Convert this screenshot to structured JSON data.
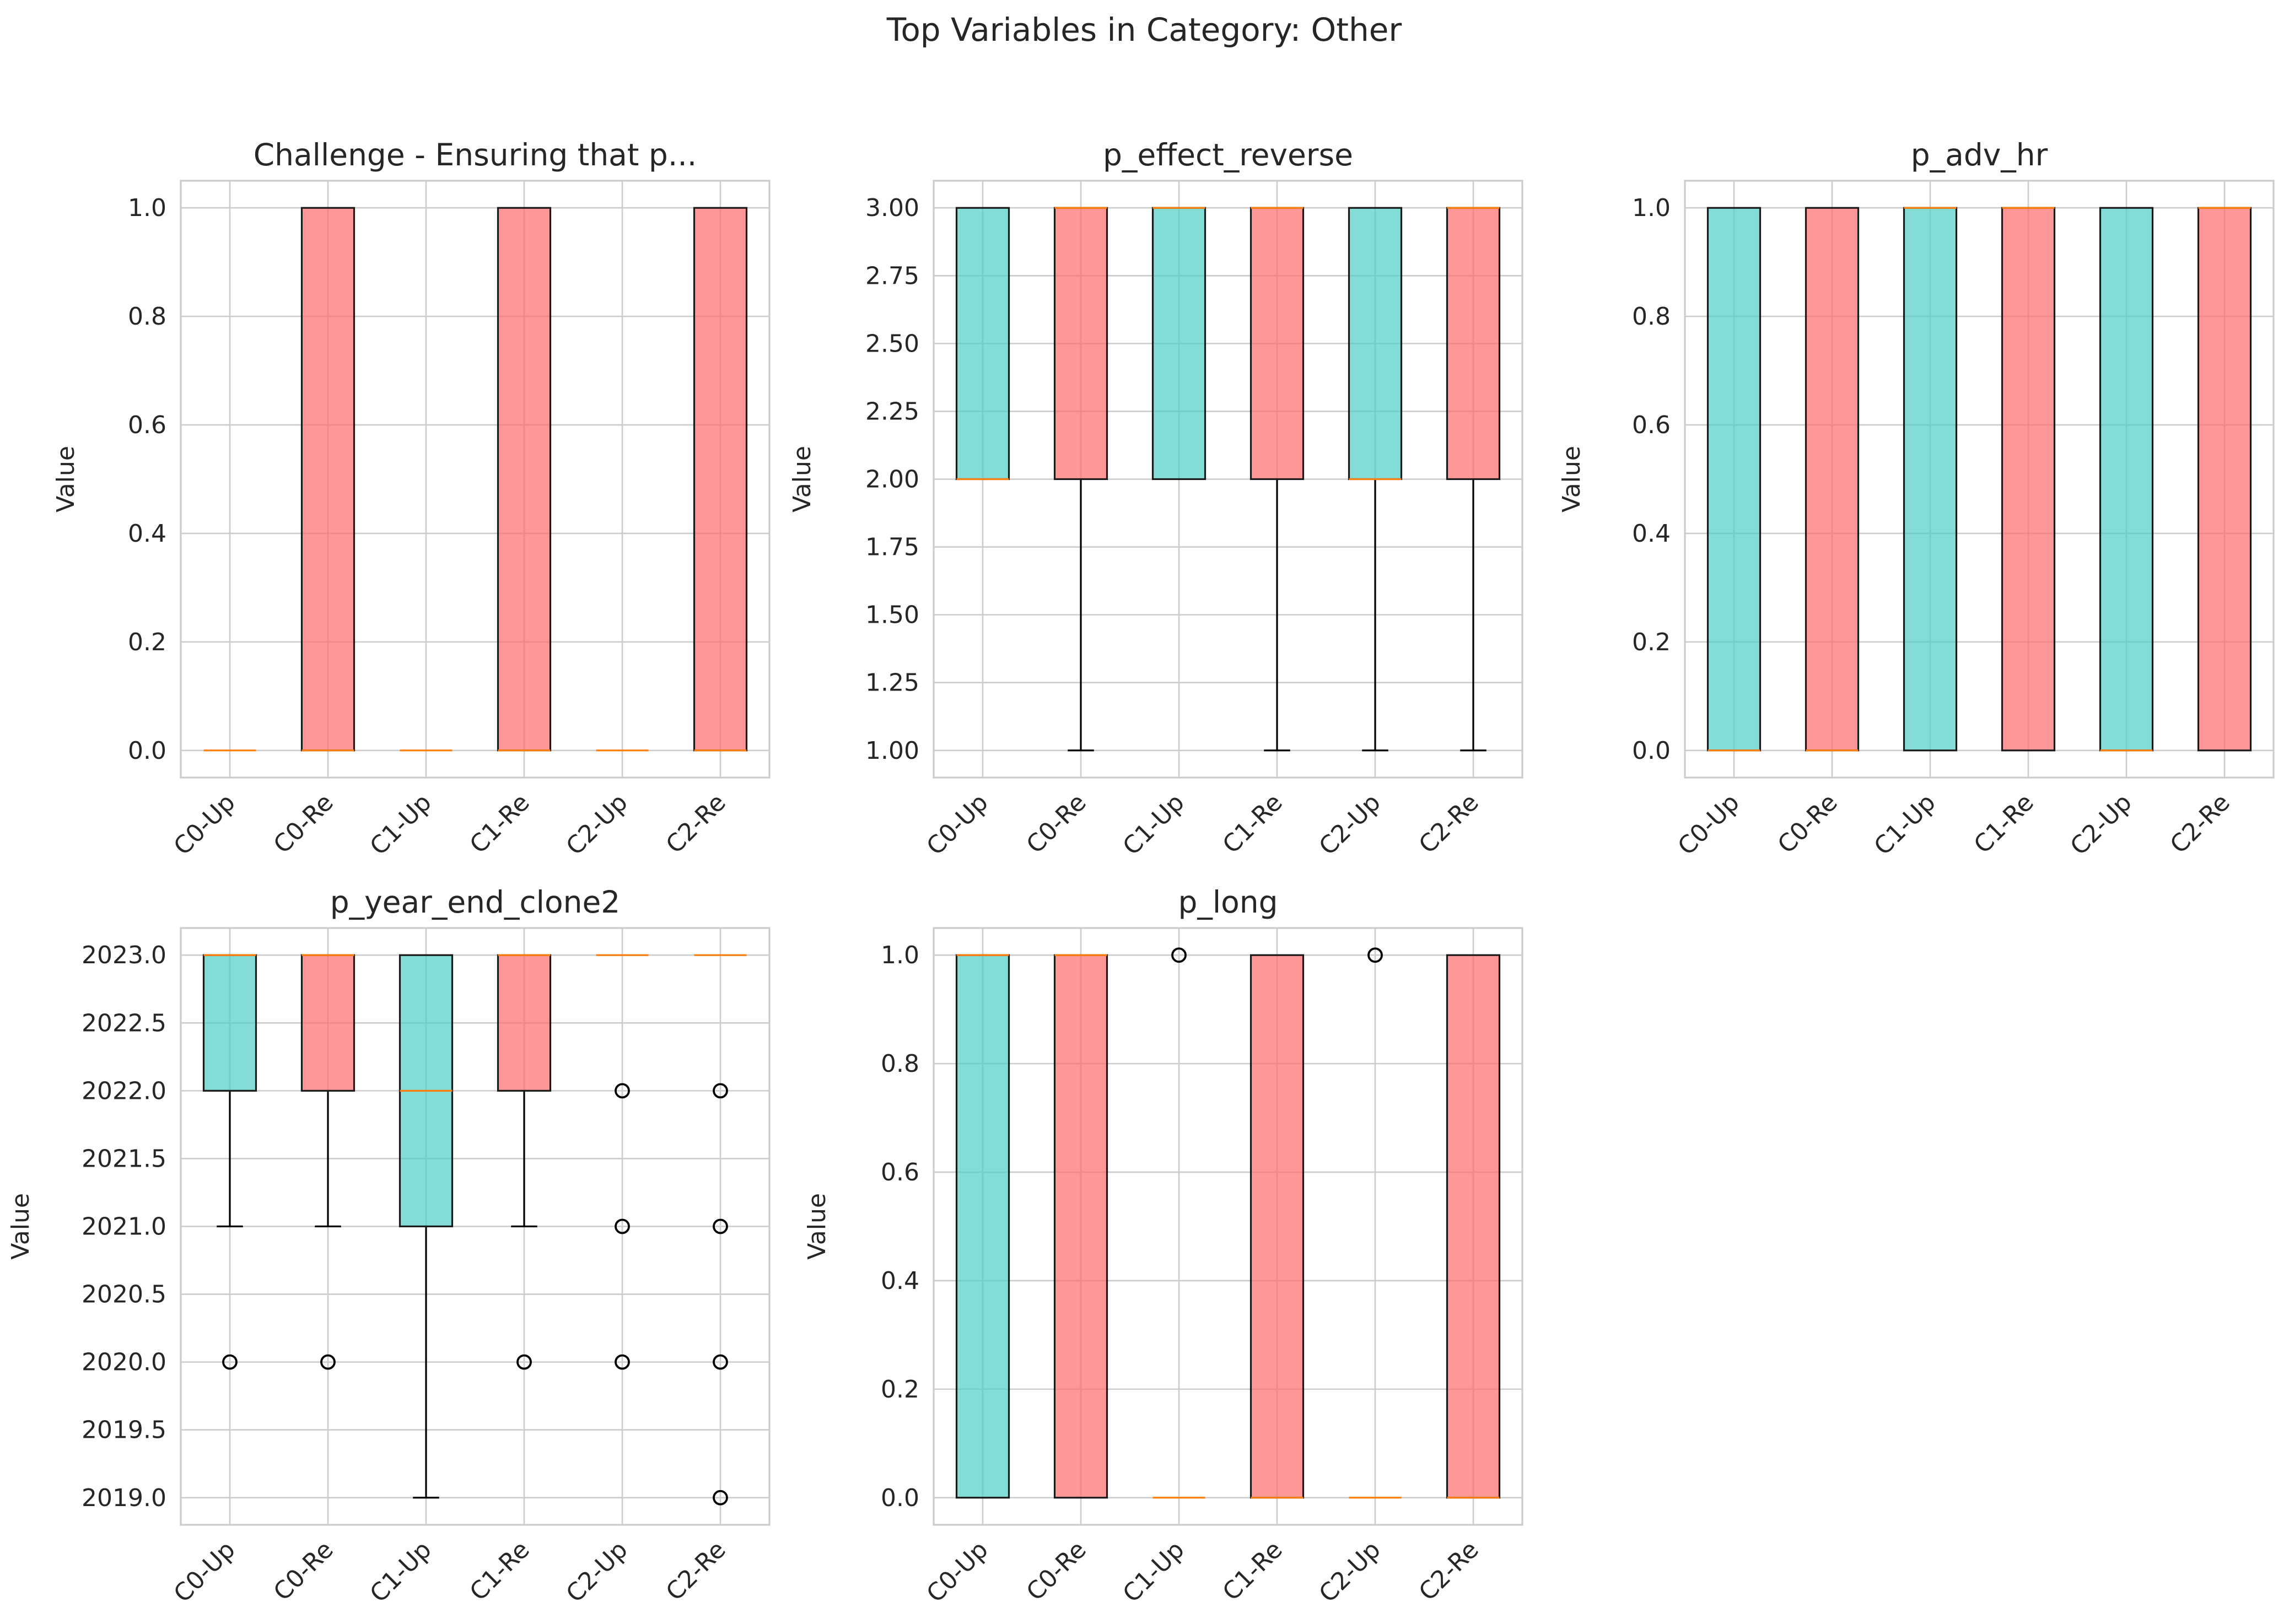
{
  "figure_title": "Top Variables in Category: Other",
  "colors": {
    "up": "#4ecdc4",
    "re": "#ff6b6b",
    "median": "#ff7f0e",
    "grid": "#cccccc"
  },
  "chart_data": [
    {
      "type": "box",
      "title": "Challenge - Ensuring that p...",
      "ylabel": "Value",
      "categories": [
        "C0-Up",
        "C0-Re",
        "C1-Up",
        "C1-Re",
        "C2-Up",
        "C2-Re"
      ],
      "ylim": [
        -0.05,
        1.05
      ],
      "yticks": [
        0.0,
        0.2,
        0.4,
        0.6,
        0.8,
        1.0
      ],
      "ytick_labels": [
        "0.0",
        "0.2",
        "0.4",
        "0.6",
        "0.8",
        "1.0"
      ],
      "boxes": [
        {
          "q1": 0,
          "med": 0,
          "q3": 0,
          "whislo": 0,
          "whishi": 0,
          "fliers": []
        },
        {
          "q1": 0,
          "med": 0,
          "q3": 1,
          "whislo": 0,
          "whishi": 1,
          "fliers": []
        },
        {
          "q1": 0,
          "med": 0,
          "q3": 0,
          "whislo": 0,
          "whishi": 0,
          "fliers": []
        },
        {
          "q1": 0,
          "med": 0,
          "q3": 1,
          "whislo": 0,
          "whishi": 1,
          "fliers": []
        },
        {
          "q1": 0,
          "med": 0,
          "q3": 0,
          "whislo": 0,
          "whishi": 0,
          "fliers": []
        },
        {
          "q1": 0,
          "med": 0,
          "q3": 1,
          "whislo": 0,
          "whishi": 1,
          "fliers": []
        }
      ]
    },
    {
      "type": "box",
      "title": "p_effect_reverse",
      "ylabel": "Value",
      "categories": [
        "C0-Up",
        "C0-Re",
        "C1-Up",
        "C1-Re",
        "C2-Up",
        "C2-Re"
      ],
      "ylim": [
        0.9,
        3.1
      ],
      "yticks": [
        1.0,
        1.25,
        1.5,
        1.75,
        2.0,
        2.25,
        2.5,
        2.75,
        3.0
      ],
      "ytick_labels": [
        "1.00",
        "1.25",
        "1.50",
        "1.75",
        "2.00",
        "2.25",
        "2.50",
        "2.75",
        "3.00"
      ],
      "boxes": [
        {
          "q1": 2,
          "med": 2,
          "q3": 3,
          "whislo": 2,
          "whishi": 3,
          "fliers": []
        },
        {
          "q1": 2,
          "med": 3,
          "q3": 3,
          "whislo": 1,
          "whishi": 3,
          "fliers": []
        },
        {
          "q1": 2,
          "med": 3,
          "q3": 3,
          "whislo": 2,
          "whishi": 3,
          "fliers": []
        },
        {
          "q1": 2,
          "med": 3,
          "q3": 3,
          "whislo": 1,
          "whishi": 3,
          "fliers": []
        },
        {
          "q1": 2,
          "med": 2,
          "q3": 3,
          "whislo": 1,
          "whishi": 3,
          "fliers": []
        },
        {
          "q1": 2,
          "med": 3,
          "q3": 3,
          "whislo": 1,
          "whishi": 3,
          "fliers": []
        }
      ]
    },
    {
      "type": "box",
      "title": "p_adv_hr",
      "ylabel": "Value",
      "categories": [
        "C0-Up",
        "C0-Re",
        "C1-Up",
        "C1-Re",
        "C2-Up",
        "C2-Re"
      ],
      "ylim": [
        -0.05,
        1.05
      ],
      "yticks": [
        0.0,
        0.2,
        0.4,
        0.6,
        0.8,
        1.0
      ],
      "ytick_labels": [
        "0.0",
        "0.2",
        "0.4",
        "0.6",
        "0.8",
        "1.0"
      ],
      "boxes": [
        {
          "q1": 0,
          "med": 0,
          "q3": 1,
          "whislo": 0,
          "whishi": 1,
          "fliers": []
        },
        {
          "q1": 0,
          "med": 0,
          "q3": 1,
          "whislo": 0,
          "whishi": 1,
          "fliers": []
        },
        {
          "q1": 0,
          "med": 1,
          "q3": 1,
          "whislo": 0,
          "whishi": 1,
          "fliers": []
        },
        {
          "q1": 0,
          "med": 1,
          "q3": 1,
          "whislo": 0,
          "whishi": 1,
          "fliers": []
        },
        {
          "q1": 0,
          "med": 0,
          "q3": 1,
          "whislo": 0,
          "whishi": 1,
          "fliers": []
        },
        {
          "q1": 0,
          "med": 1,
          "q3": 1,
          "whislo": 0,
          "whishi": 1,
          "fliers": []
        }
      ]
    },
    {
      "type": "box",
      "title": "p_year_end_clone2",
      "ylabel": "Value",
      "categories": [
        "C0-Up",
        "C0-Re",
        "C1-Up",
        "C1-Re",
        "C2-Up",
        "C2-Re"
      ],
      "ylim": [
        2018.8,
        2023.2
      ],
      "yticks": [
        2019.0,
        2019.5,
        2020.0,
        2020.5,
        2021.0,
        2021.5,
        2022.0,
        2022.5,
        2023.0
      ],
      "ytick_labels": [
        "2019.0",
        "2019.5",
        "2020.0",
        "2020.5",
        "2021.0",
        "2021.5",
        "2022.0",
        "2022.5",
        "2023.0"
      ],
      "boxes": [
        {
          "q1": 2022,
          "med": 2023,
          "q3": 2023,
          "whislo": 2021,
          "whishi": 2023,
          "fliers": [
            2020
          ]
        },
        {
          "q1": 2022,
          "med": 2023,
          "q3": 2023,
          "whislo": 2021,
          "whishi": 2023,
          "fliers": [
            2020
          ]
        },
        {
          "q1": 2021,
          "med": 2022,
          "q3": 2023,
          "whislo": 2019,
          "whishi": 2023,
          "fliers": []
        },
        {
          "q1": 2022,
          "med": 2023,
          "q3": 2023,
          "whislo": 2021,
          "whishi": 2023,
          "fliers": [
            2020
          ]
        },
        {
          "q1": 2023,
          "med": 2023,
          "q3": 2023,
          "whislo": 2023,
          "whishi": 2023,
          "fliers": [
            2022,
            2021,
            2020
          ]
        },
        {
          "q1": 2023,
          "med": 2023,
          "q3": 2023,
          "whislo": 2023,
          "whishi": 2023,
          "fliers": [
            2022,
            2021,
            2020,
            2019
          ]
        }
      ]
    },
    {
      "type": "box",
      "title": "p_long",
      "ylabel": "Value",
      "categories": [
        "C0-Up",
        "C0-Re",
        "C1-Up",
        "C1-Re",
        "C2-Up",
        "C2-Re"
      ],
      "ylim": [
        -0.05,
        1.05
      ],
      "yticks": [
        0.0,
        0.2,
        0.4,
        0.6,
        0.8,
        1.0
      ],
      "ytick_labels": [
        "0.0",
        "0.2",
        "0.4",
        "0.6",
        "0.8",
        "1.0"
      ],
      "boxes": [
        {
          "q1": 0,
          "med": 1,
          "q3": 1,
          "whislo": 0,
          "whishi": 1,
          "fliers": []
        },
        {
          "q1": 0,
          "med": 1,
          "q3": 1,
          "whislo": 0,
          "whishi": 1,
          "fliers": []
        },
        {
          "q1": 0,
          "med": 0,
          "q3": 0,
          "whislo": 0,
          "whishi": 0,
          "fliers": [
            1
          ]
        },
        {
          "q1": 0,
          "med": 0,
          "q3": 1,
          "whislo": 0,
          "whishi": 1,
          "fliers": []
        },
        {
          "q1": 0,
          "med": 0,
          "q3": 0,
          "whislo": 0,
          "whishi": 0,
          "fliers": [
            1
          ]
        },
        {
          "q1": 0,
          "med": 0,
          "q3": 1,
          "whislo": 0,
          "whishi": 1,
          "fliers": []
        }
      ]
    }
  ]
}
